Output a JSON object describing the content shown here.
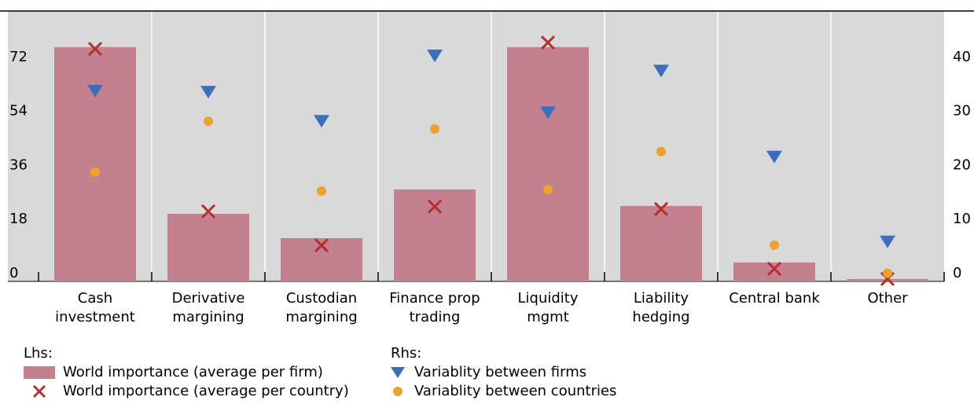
{
  "chart_data": {
    "type": "bar",
    "categories": [
      "Cash\ninvestment",
      "Derivative\nmargining",
      "Custodian\nmargining",
      "Finance prop\ntrading",
      "Liquidity\nmgmt",
      "Liability\nhedging",
      "Central bank",
      "Other"
    ],
    "legend_groups": [
      "Lhs:",
      "Rhs:"
    ],
    "series": [
      {
        "name": "World importance (average per firm)",
        "type": "bar",
        "color": "#c3808f",
        "axis": "y",
        "values": [
          78,
          22.5,
          14.4,
          30.6,
          78,
          25.1,
          6.3,
          0.8
        ]
      },
      {
        "name": "World importance (average per country)",
        "type": "cross",
        "color": "#b3302f",
        "axis": "y",
        "values": [
          77.4,
          23.3,
          12,
          24.9,
          79.5,
          24.1,
          4.2,
          0.8
        ]
      },
      {
        "name": "Variablity between firms",
        "type": "triangle",
        "color": "#3d6dbd",
        "axis": "y2",
        "values": [
          35.2,
          35,
          29.6,
          41.7,
          31.2,
          38.9,
          23,
          7.3
        ]
      },
      {
        "name": "Variablity between countries",
        "type": "dot",
        "color": "#eca22c",
        "axis": "y2",
        "values": [
          20.2,
          29.6,
          16.7,
          28.2,
          17,
          24,
          6.7,
          1.5
        ]
      }
    ],
    "ylim": [
      0,
      90
    ],
    "yticks": [
      0,
      18,
      36,
      54,
      72
    ],
    "y2lim": [
      0,
      50
    ],
    "y2ticks": [
      0,
      10,
      20,
      30,
      40
    ]
  }
}
